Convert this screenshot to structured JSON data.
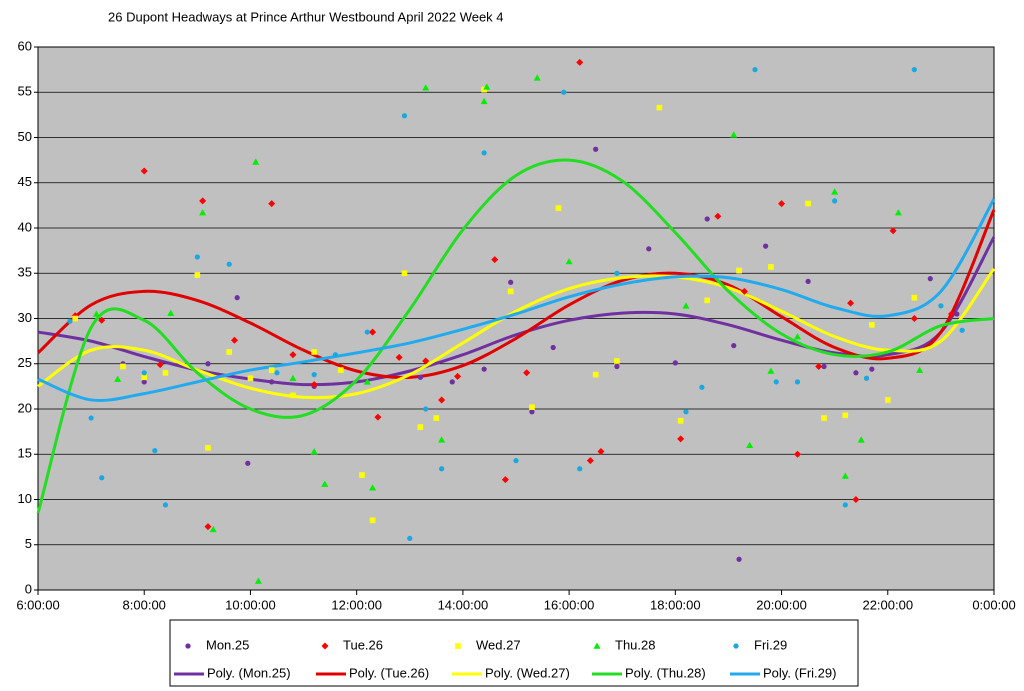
{
  "chart_data": {
    "type": "scatter",
    "title": "26 Dupont Headways at Prince Arthur Westbound April 2022  Week 4",
    "xlim": [
      6,
      24
    ],
    "xticks": [
      {
        "value": 6,
        "label": "6:00:00"
      },
      {
        "value": 8,
        "label": "8:00:00"
      },
      {
        "value": 10,
        "label": "10:00:00"
      },
      {
        "value": 12,
        "label": "12:00:00"
      },
      {
        "value": 14,
        "label": "14:00:00"
      },
      {
        "value": 16,
        "label": "16:00:00"
      },
      {
        "value": 18,
        "label": "18:00:00"
      },
      {
        "value": 20,
        "label": "20:00:00"
      },
      {
        "value": 22,
        "label": "22:00:00"
      },
      {
        "value": 24,
        "label": "0:00:00"
      }
    ],
    "ylim": [
      0,
      60
    ],
    "yticks": [
      0,
      5,
      10,
      15,
      20,
      25,
      30,
      35,
      40,
      45,
      50,
      55,
      60
    ],
    "grid": true,
    "legend": "bottom",
    "series": [
      {
        "name": "Mon.25",
        "color": "#7030a0",
        "marker": "circle",
        "x": [
          7.6,
          8.0,
          9.2,
          9.75,
          9.95,
          10.4,
          11.2,
          12.3,
          13.2,
          13.8,
          14.4,
          14.9,
          15.3,
          15.7,
          16.5,
          16.9,
          17.5,
          18.0,
          18.6,
          19.1,
          19.2,
          19.7,
          20.5,
          20.8,
          21.4,
          21.7,
          22.8,
          23.3
        ],
        "values": [
          25,
          23,
          25,
          32.3,
          14,
          23,
          22.5,
          28.5,
          23.5,
          23,
          24.4,
          34,
          19.7,
          26.8,
          48.7,
          24.7,
          37.7,
          25.1,
          41,
          27,
          3.4,
          38,
          34.1,
          24.7,
          24,
          24.4,
          34.4,
          30.5
        ]
      },
      {
        "name": "Tue.26",
        "color": "#ff0000",
        "marker": "diamond",
        "x": [
          6.7,
          7.2,
          8.0,
          8.3,
          9.1,
          9.2,
          9.7,
          10.4,
          10.8,
          11.2,
          12.3,
          12.4,
          12.8,
          13.3,
          13.6,
          13.9,
          14.6,
          14.8,
          15.2,
          16.2,
          16.4,
          16.6,
          18.1,
          18.8,
          19.3,
          20.0,
          20.3,
          20.7,
          21.3,
          21.4,
          22.1,
          22.5,
          23.2
        ],
        "values": [
          30.3,
          29.8,
          46.3,
          24.9,
          43,
          7,
          27.6,
          42.7,
          26,
          22.7,
          28.5,
          19.1,
          25.7,
          25.3,
          21,
          23.6,
          36.5,
          12.2,
          24,
          58.3,
          14.3,
          15.3,
          16.7,
          41.3,
          33,
          42.7,
          15,
          24.7,
          31.7,
          10,
          39.7,
          30,
          30.5
        ]
      },
      {
        "name": "Wed.27",
        "color": "#ffff00",
        "marker": "square",
        "x": [
          6.7,
          7.6,
          8.0,
          8.4,
          9.0,
          9.2,
          9.6,
          10.0,
          10.4,
          10.8,
          11.2,
          11.7,
          12.1,
          12.3,
          12.9,
          13.2,
          13.5,
          14.4,
          14.9,
          15.3,
          15.8,
          16.5,
          16.9,
          17.7,
          18.1,
          18.6,
          19.2,
          19.8,
          20.5,
          20.8,
          21.2,
          21.7,
          22.0,
          22.5
        ],
        "values": [
          30,
          24.7,
          23.5,
          24,
          34.8,
          15.7,
          26.3,
          23.4,
          24.3,
          21.5,
          26.3,
          24.3,
          12.7,
          7.7,
          35,
          18,
          19,
          55.3,
          33,
          20.2,
          42.2,
          23.8,
          25.3,
          53.3,
          18.7,
          32,
          35.3,
          35.7,
          42.7,
          19,
          19.3,
          29.3,
          21,
          32.3
        ]
      },
      {
        "name": "Thu.28",
        "color": "#00ee00",
        "marker": "triangle",
        "x": [
          7.1,
          7.5,
          8.5,
          9.1,
          9.3,
          10.1,
          10.15,
          10.8,
          11.2,
          11.4,
          12.3,
          12.2,
          13.3,
          13.6,
          14.4,
          14.45,
          15.4,
          16.0,
          18.2,
          19.1,
          19.4,
          19.8,
          20.3,
          21.0,
          21.2,
          21.5,
          22.2,
          22.6
        ],
        "values": [
          30.5,
          23.3,
          30.6,
          41.7,
          6.7,
          47.3,
          1,
          23.4,
          15.3,
          11.7,
          11.3,
          23,
          55.5,
          16.6,
          54,
          55.6,
          56.6,
          36.3,
          31.4,
          50.3,
          16,
          24.2,
          28,
          44,
          12.6,
          16.6,
          41.7,
          24.3
        ]
      },
      {
        "name": "Fri.29",
        "color": "#1aa8e0",
        "marker": "circle",
        "x": [
          6.6,
          7.0,
          7.2,
          8.0,
          8.2,
          8.4,
          9.0,
          9.6,
          10.5,
          11.2,
          11.6,
          12.2,
          12.9,
          13.0,
          13.3,
          13.6,
          14.4,
          15.0,
          15.9,
          16.2,
          16.9,
          18.2,
          18.5,
          19.5,
          19.9,
          20.3,
          21.0,
          21.2,
          21.6,
          22.5,
          23.0,
          23.4
        ],
        "values": [
          29.7,
          19,
          12.4,
          24,
          15.4,
          9.4,
          36.8,
          36,
          24,
          23.8,
          26,
          28.5,
          52.4,
          5.7,
          20,
          13.4,
          48.3,
          14.3,
          55,
          13.4,
          35,
          19.7,
          22.4,
          57.5,
          23,
          23,
          43,
          9.4,
          23.4,
          57.5,
          31.4,
          28.7
        ]
      }
    ],
    "trend_x": [
      6,
      7,
      8,
      9,
      10,
      11,
      12,
      13,
      14,
      15,
      16,
      17,
      18,
      19,
      20,
      21,
      22,
      23,
      24
    ],
    "trendlines": [
      {
        "name": "Poly. (Mon.25)",
        "color": "#7030a0",
        "values": [
          28.5,
          27.5,
          25.8,
          24.3,
          23.3,
          22.7,
          23,
          24.2,
          26,
          28.2,
          29.8,
          30.6,
          30.5,
          29.3,
          27.6,
          26.2,
          26,
          28.5,
          39
        ]
      },
      {
        "name": "Poly. (Tue.26)",
        "color": "#e00000",
        "values": [
          26.2,
          31.5,
          33,
          32,
          29.5,
          26.5,
          24.2,
          23.5,
          24.8,
          27.8,
          31.5,
          34.2,
          35,
          33.7,
          30.2,
          26.8,
          25.6,
          28.5,
          42
        ]
      },
      {
        "name": "Poly. (Wed.27)",
        "color": "#ffff00",
        "values": [
          22.5,
          26.5,
          26.5,
          24.3,
          22.3,
          21.3,
          21.7,
          23.8,
          27.3,
          30.8,
          33.3,
          34.5,
          34.6,
          33.4,
          30.8,
          28,
          26.5,
          27.5,
          35.5
        ]
      },
      {
        "name": "Poly. (Thu.28)",
        "color": "#22dd22",
        "values": [
          8.5,
          29,
          29.8,
          24,
          20,
          19.3,
          23.2,
          31,
          39.8,
          45.8,
          47.5,
          45.2,
          39.5,
          33,
          28.3,
          26,
          26.3,
          29.2,
          30
        ]
      },
      {
        "name": "Poly. (Fri.29)",
        "color": "#22aaee",
        "values": [
          23.3,
          21,
          21.7,
          23,
          24.3,
          25.2,
          26.2,
          27.3,
          28.8,
          30.5,
          32.4,
          33.8,
          34.6,
          34.5,
          33.2,
          31.2,
          30.3,
          33,
          43.2
        ]
      }
    ]
  }
}
